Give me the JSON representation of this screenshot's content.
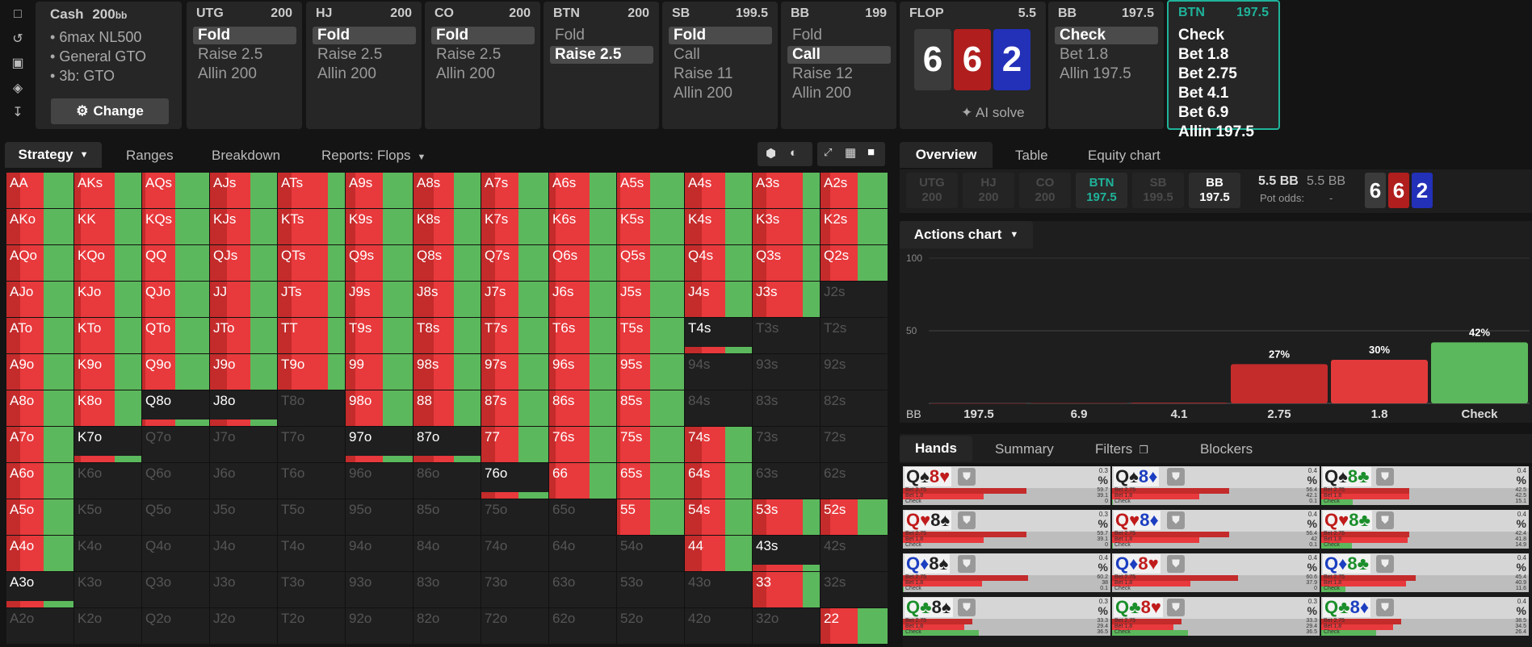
{
  "sidebar": {
    "icons": [
      "bookmark-icon",
      "history-icon",
      "save-icon",
      "gamepad-icon",
      "upload-icon"
    ]
  },
  "header": {
    "cash_label": "Cash",
    "cash_stack": "200",
    "cash_unit": "bb",
    "info": [
      "6max NL500",
      "General GTO",
      "3b: GTO"
    ],
    "change_label": "Change",
    "positions": [
      {
        "name": "UTG",
        "stack": "200",
        "actions": [
          "Fold",
          "Raise 2.5",
          "Allin 200"
        ],
        "selected": 0
      },
      {
        "name": "HJ",
        "stack": "200",
        "actions": [
          "Fold",
          "Raise 2.5",
          "Allin 200"
        ],
        "selected": 0
      },
      {
        "name": "CO",
        "stack": "200",
        "actions": [
          "Fold",
          "Raise 2.5",
          "Allin 200"
        ],
        "selected": 0
      },
      {
        "name": "BTN",
        "stack": "200",
        "actions": [
          "Fold",
          "Raise 2.5"
        ],
        "selected": 1
      },
      {
        "name": "SB",
        "stack": "199.5",
        "actions": [
          "Fold",
          "Call",
          "Raise 11",
          "Allin 200"
        ],
        "selected": 0
      },
      {
        "name": "BB",
        "stack": "199",
        "actions": [
          "Fold",
          "Call",
          "Raise 12",
          "Allin 200"
        ],
        "selected": 1
      }
    ],
    "flop": {
      "label": "FLOP",
      "pot": "5.5",
      "cards": [
        "6",
        "6",
        "2"
      ],
      "ai_label": "AI solve"
    },
    "bb_col": {
      "name": "BB",
      "stack": "197.5",
      "actions": [
        "Check",
        "Bet 1.8",
        "Allin 197.5"
      ],
      "selected": 0
    },
    "btn_col": {
      "name": "BTN",
      "stack": "197.5",
      "actions": [
        "Check",
        "Bet 1.8",
        "Bet 2.75",
        "Bet 4.1",
        "Bet 6.9",
        "Allin 197.5"
      ]
    }
  },
  "left_tabs": {
    "strategy": "Strategy",
    "ranges": "Ranges",
    "breakdown": "Breakdown",
    "reports": "Reports: Flops"
  },
  "grid": {
    "ranks": [
      "A",
      "K",
      "Q",
      "J",
      "T",
      "9",
      "8",
      "7",
      "6",
      "5",
      "4",
      "3",
      "2"
    ]
  },
  "right_tabs": {
    "overview": "Overview",
    "table": "Table",
    "equity": "Equity chart"
  },
  "seats": [
    {
      "name": "UTG",
      "stack": "200"
    },
    {
      "name": "HJ",
      "stack": "200"
    },
    {
      "name": "CO",
      "stack": "200"
    },
    {
      "name": "BTN",
      "stack": "197.5"
    },
    {
      "name": "SB",
      "stack": "199.5"
    },
    {
      "name": "BB",
      "stack": "197.5"
    }
  ],
  "pot": {
    "main": "5.5 BB",
    "side": "5.5 BB",
    "odds_label": "Pot odds:",
    "odds_value": "-"
  },
  "actions_chart": {
    "title": "Actions chart",
    "ylabels": [
      "100",
      "50"
    ],
    "row_label": "BB"
  },
  "chart_data": {
    "type": "bar",
    "categories": [
      "197.5",
      "6.9",
      "4.1",
      "2.75",
      "1.8",
      "Check"
    ],
    "values": [
      0,
      0.3,
      0.5,
      27,
      30,
      42
    ],
    "labels": [
      "",
      "",
      "",
      "27%",
      "30%",
      "42%"
    ],
    "colors": [
      "#8b1a1a",
      "#a01f1f",
      "#b52525",
      "#c42b2b",
      "#e23a3a",
      "#5cb85c"
    ],
    "ylim": [
      0,
      100
    ],
    "yticks": [
      "100",
      "50"
    ],
    "xlabel": "BB"
  },
  "bottom_tabs": {
    "hands": "Hands",
    "summary": "Summary",
    "filters": "Filters",
    "blockers": "Blockers"
  },
  "hands": [
    {
      "c1": "Q",
      "s1": "♠",
      "c2": "8",
      "s2": "♥",
      "vals": [
        "0.3",
        "%",
        "59.7",
        "39.1",
        "0"
      ]
    },
    {
      "c1": "Q",
      "s1": "♠",
      "c2": "8",
      "s2": "♦",
      "vals": [
        "0.4",
        "%",
        "56.4",
        "42.1",
        "0.1"
      ]
    },
    {
      "c1": "Q",
      "s1": "♠",
      "c2": "8",
      "s2": "♣",
      "vals": [
        "0.4",
        "%",
        "42.5",
        "42.5",
        "15.1"
      ]
    },
    {
      "c1": "Q",
      "s1": "♥",
      "c2": "8",
      "s2": "♠",
      "vals": [
        "0.3",
        "%",
        "59.7",
        "39.1",
        "0"
      ]
    },
    {
      "c1": "Q",
      "s1": "♥",
      "c2": "8",
      "s2": "♦",
      "vals": [
        "0.4",
        "%",
        "56.4",
        "42",
        "0.1"
      ]
    },
    {
      "c1": "Q",
      "s1": "♥",
      "c2": "8",
      "s2": "♣",
      "vals": [
        "0.4",
        "%",
        "42.4",
        "41.8",
        "14.9"
      ]
    },
    {
      "c1": "Q",
      "s1": "♦",
      "c2": "8",
      "s2": "♠",
      "vals": [
        "0.4",
        "%",
        "60.2",
        "38",
        "0.1"
      ]
    },
    {
      "c1": "Q",
      "s1": "♦",
      "c2": "8",
      "s2": "♥",
      "vals": [
        "0.4",
        "%",
        "60.6",
        "37.9",
        "0"
      ]
    },
    {
      "c1": "Q",
      "s1": "♦",
      "c2": "8",
      "s2": "♣",
      "vals": [
        "0.4",
        "%",
        "45.4",
        "40.9",
        "11.6"
      ]
    },
    {
      "c1": "Q",
      "s1": "♣",
      "c2": "8",
      "s2": "♠",
      "vals": [
        "0.3",
        "%",
        "33.3",
        "29.4",
        "36.5"
      ]
    },
    {
      "c1": "Q",
      "s1": "♣",
      "c2": "8",
      "s2": "♥",
      "vals": [
        "0.3",
        "%",
        "33.3",
        "29.4",
        "36.5"
      ]
    },
    {
      "c1": "Q",
      "s1": "♣",
      "c2": "8",
      "s2": "♦",
      "vals": [
        "0.4",
        "%",
        "38.5",
        "34.5",
        "26.4"
      ]
    }
  ],
  "hand_row_labels": [
    "Bet 2.75",
    "Bet 1.8",
    "Check"
  ],
  "colors": {
    "fold": "#3c7ad6",
    "check": "#5cb85c",
    "bet_small": "#e8393c",
    "bet_big": "#c42b2b",
    "accent": "#1fb39a"
  }
}
